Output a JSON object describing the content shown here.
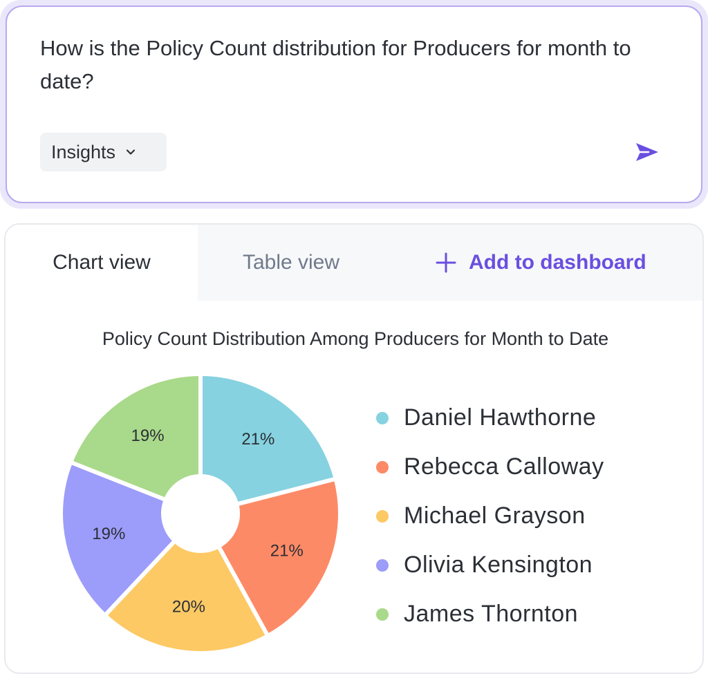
{
  "prompt": {
    "question": "How is the Policy Count distribution for Producers for month to date?",
    "mode_label": "Insights",
    "chevron_icon": "chevron-down-icon",
    "send_icon": "send-icon"
  },
  "tabs": {
    "chart_view": "Chart view",
    "table_view": "Table view",
    "add_to_dashboard": "Add to dashboard",
    "add_icon": "plus-icon"
  },
  "chart_data": {
    "type": "pie",
    "title": "Policy Count Distribution Among Producers for Month to Date",
    "legend_position": "right",
    "slices": [
      {
        "name": "Daniel Hawthorne",
        "value": 21,
        "label": "21%",
        "color": "#86d2e0"
      },
      {
        "name": "Rebecca Calloway",
        "value": 21,
        "label": "21%",
        "color": "#fd8a66"
      },
      {
        "name": "Michael Grayson",
        "value": 20,
        "label": "20%",
        "color": "#fdc964"
      },
      {
        "name": "Olivia Kensington",
        "value": 19,
        "label": "19%",
        "color": "#9c9cfa"
      },
      {
        "name": "James Thornton",
        "value": 19,
        "label": "19%",
        "color": "#a9d98a"
      }
    ]
  }
}
